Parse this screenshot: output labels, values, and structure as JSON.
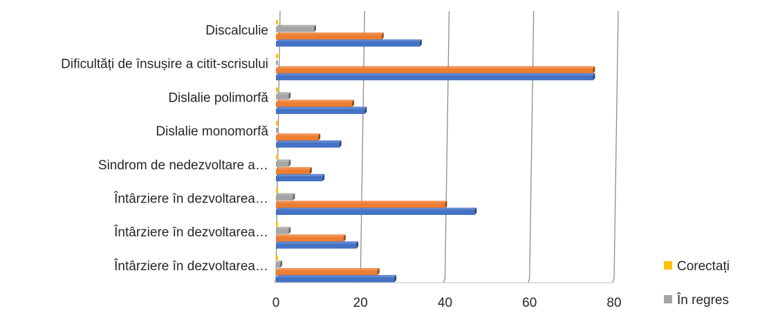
{
  "chart_data": {
    "type": "bar",
    "orientation": "horizontal",
    "grouping": "clustered",
    "style": "3d",
    "categories": [
      "Discalculie",
      "Dificultăți de însușire a citit-scrisului",
      "Dislalie polimorfă",
      "Dislalie monomorfă",
      "Sindrom de nedezvoltare a…",
      "Întârziere  în dezvoltarea…",
      "Întârziere  în dezvoltarea…",
      "Întârziere  în dezvoltarea…"
    ],
    "series": [
      {
        "name": "",
        "color": "#4472C4",
        "values": [
          34,
          75,
          21,
          15,
          11,
          47,
          19,
          28
        ]
      },
      {
        "name": "",
        "color": "#ED7D31",
        "values": [
          25,
          75,
          18,
          10,
          8,
          40,
          16,
          24
        ]
      },
      {
        "name": "În regres",
        "color": "#A5A5A5",
        "values": [
          9,
          0,
          3,
          0,
          3,
          4,
          3,
          1
        ]
      },
      {
        "name": "Corectați",
        "color": "#FFC000",
        "values": [
          0,
          0,
          0,
          0,
          0,
          0,
          0,
          0
        ]
      }
    ],
    "xlim": [
      0,
      80
    ],
    "xticks": [
      0,
      20,
      40,
      60,
      80
    ],
    "grid": "vertical",
    "legend_position": "right-bottom",
    "title": "",
    "xlabel": "",
    "ylabel": ""
  }
}
